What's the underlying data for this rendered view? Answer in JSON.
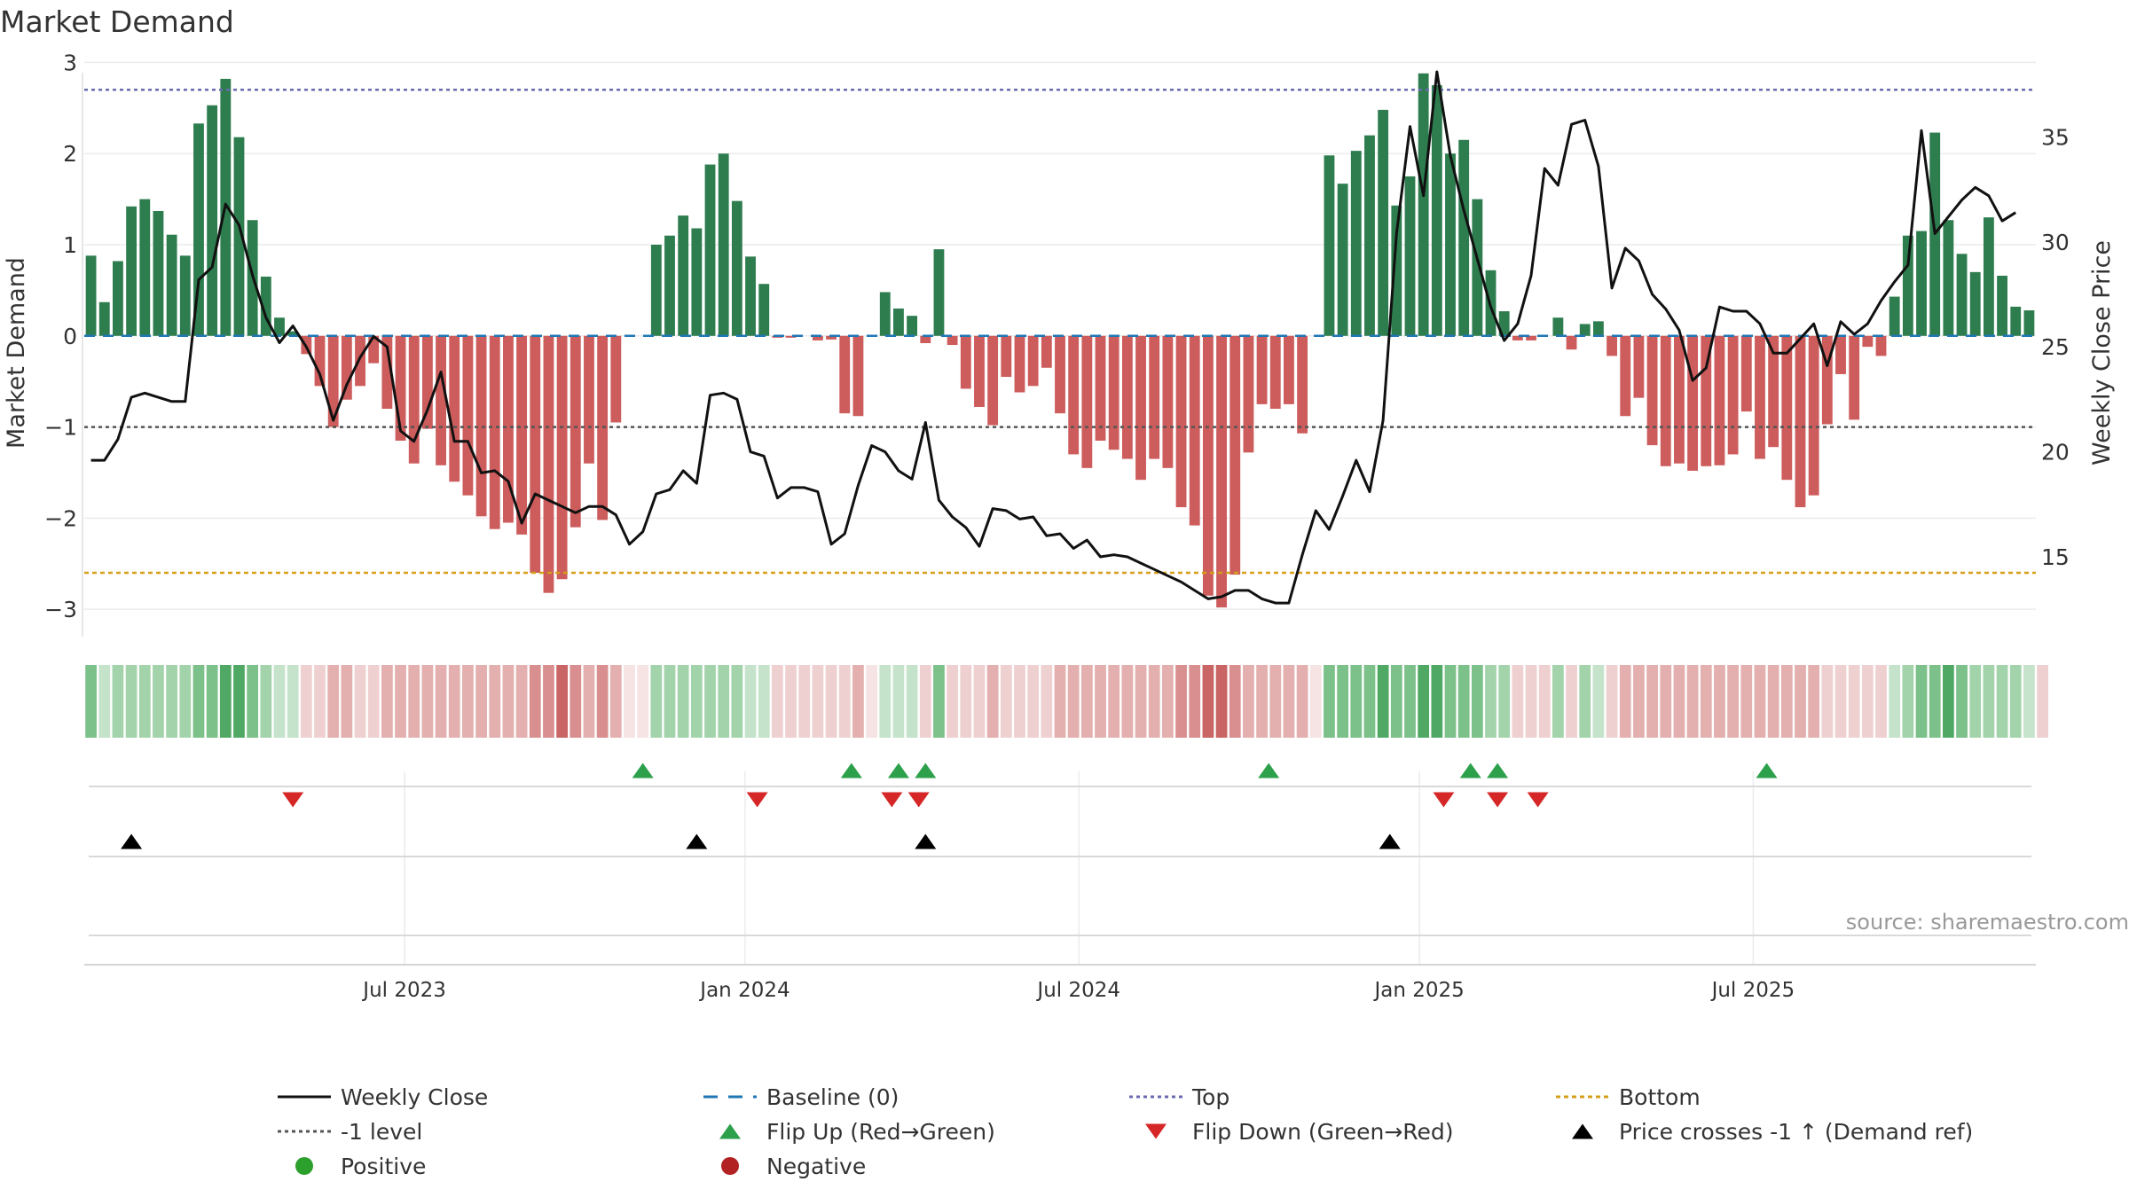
{
  "chart_data": {
    "type": "bar",
    "title": "Market Demand",
    "ylabel": "Market Demand",
    "y2label": "Weekly Close Price",
    "ylim": [
      -3.3,
      3.15
    ],
    "y_ticks": [
      3,
      2,
      1,
      0,
      -1,
      -2,
      -3
    ],
    "y_tick_labels": [
      "3",
      "2",
      "1",
      "0",
      "−1",
      "−2",
      "−3"
    ],
    "y2lim": [
      11.2,
      39.2
    ],
    "y2_ticks": [
      35,
      30,
      25,
      20,
      15
    ],
    "y2_tick_labels": [
      "35",
      "30",
      "25",
      "20",
      "15"
    ],
    "reference_lines": {
      "top": 2.7,
      "bottom": -2.6,
      "minus_one": -1,
      "baseline": 0
    },
    "x_ticks": [
      23.3,
      48.6,
      73.4,
      98.7,
      123.5
    ],
    "x_tick_labels": [
      "Jul 2023",
      "Jan 2024",
      "Jul 2024",
      "Jan 2025",
      "Jul 2025"
    ],
    "demand": [
      0.88,
      0.37,
      0.82,
      1.42,
      1.5,
      1.37,
      1.11,
      0.88,
      2.33,
      2.53,
      2.82,
      2.18,
      1.27,
      0.65,
      0.2,
      0.05,
      -0.2,
      -0.55,
      -1,
      -0.7,
      -0.55,
      -0.3,
      -0.8,
      -1.15,
      -1.4,
      -1.02,
      -1.42,
      -1.6,
      -1.75,
      -1.98,
      -2.12,
      -2.05,
      -2.18,
      -2.6,
      -2.82,
      -2.67,
      -2.1,
      -1.4,
      -2.02,
      -0.95,
      0,
      0,
      1,
      1.1,
      1.32,
      1.18,
      1.88,
      2,
      1.48,
      0.87,
      0.57,
      -0.02,
      -0.02,
      0,
      -0.05,
      -0.04,
      -0.85,
      -0.88,
      0,
      0.48,
      0.3,
      0.22,
      -0.08,
      0.95,
      -0.1,
      -0.58,
      -0.78,
      -0.98,
      -0.45,
      -0.62,
      -0.55,
      -0.35,
      -0.85,
      -1.3,
      -1.45,
      -1.15,
      -1.25,
      -1.35,
      -1.58,
      -1.35,
      -1.45,
      -1.88,
      -2.08,
      -2.85,
      -2.98,
      -2.62,
      -1.28,
      -0.75,
      -0.8,
      -0.75,
      -1.07,
      0,
      1.98,
      1.67,
      2.03,
      2.2,
      2.48,
      1.43,
      1.75,
      2.88,
      2.75,
      2,
      2.15,
      1.5,
      0.72,
      0.27,
      -0.05,
      -0.05,
      0,
      0.2,
      -0.15,
      0.13,
      0.16,
      -0.22,
      -0.88,
      -0.68,
      -1.2,
      -1.43,
      -1.4,
      -1.48,
      -1.43,
      -1.42,
      -1.3,
      -0.83,
      -1.35,
      -1.22,
      -1.58,
      -1.88,
      -1.75,
      -0.97,
      -0.42,
      -0.92,
      -0.12,
      -0.22,
      0.43,
      1.1,
      1.15,
      2.23,
      1.27,
      0.9,
      0.7,
      1.3,
      0.66,
      0.32,
      0.28
    ],
    "weekly_close": [
      19.6,
      19.6,
      20.6,
      22.6,
      22.8,
      22.6,
      22.4,
      22.4,
      28.2,
      28.8,
      31.8,
      30.8,
      28.4,
      26.4,
      25.2,
      26.0,
      25.0,
      23.7,
      21.5,
      23.2,
      24.5,
      25.5,
      25.0,
      21.0,
      20.5,
      22.0,
      23.8,
      20.5,
      20.5,
      19.0,
      19.1,
      18.6,
      16.6,
      18.0,
      17.7,
      17.4,
      17.1,
      17.4,
      17.4,
      17.0,
      15.6,
      16.2,
      18.0,
      18.2,
      19.1,
      18.5,
      22.7,
      22.8,
      22.5,
      20.0,
      19.8,
      17.8,
      18.3,
      18.3,
      18.1,
      15.6,
      16.1,
      18.4,
      20.3,
      20.0,
      19.1,
      18.7,
      21.4,
      17.7,
      16.9,
      16.4,
      15.5,
      17.3,
      17.2,
      16.8,
      16.9,
      16.0,
      16.1,
      15.4,
      15.8,
      15.0,
      15.1,
      15.0,
      14.7,
      14.4,
      14.1,
      13.8,
      13.4,
      13.0,
      13.1,
      13.4,
      13.4,
      13.0,
      12.8,
      12.8,
      15.1,
      17.2,
      16.3,
      17.9,
      19.6,
      18.1,
      21.5,
      30.4,
      35.5,
      32.2,
      38.1,
      34.1,
      31.5,
      29.2,
      26.9,
      25.3,
      26.1,
      28.4,
      33.5,
      32.7,
      35.6,
      35.8,
      33.6,
      27.8,
      29.7,
      29.1,
      27.5,
      26.8,
      25.8,
      23.4,
      24.0,
      26.9,
      26.7,
      26.7,
      26.1,
      24.7,
      24.7,
      25.4,
      26.1,
      24.1,
      26.2,
      25.6,
      26.1,
      27.2,
      28.1,
      28.9,
      35.3,
      30.4,
      31.2,
      32.0,
      32.6,
      32.2,
      31.0,
      31.4
    ],
    "strip_shades": [
      3,
      1,
      2,
      2,
      2,
      2,
      2,
      2,
      3,
      3,
      4,
      4,
      3,
      2,
      1,
      1,
      1,
      1,
      2,
      2,
      1,
      1,
      2,
      2,
      2,
      2,
      2,
      2,
      2,
      2,
      2,
      2,
      2,
      3,
      3,
      4,
      3,
      2,
      3,
      2,
      0,
      0,
      2,
      2,
      2,
      2,
      2,
      2,
      2,
      1,
      1,
      1,
      1,
      1,
      1,
      1,
      1,
      2,
      0,
      1,
      1,
      1,
      1,
      3,
      1,
      1,
      1,
      2,
      1,
      1,
      1,
      1,
      2,
      2,
      2,
      2,
      2,
      2,
      2,
      2,
      2,
      3,
      3,
      4,
      4,
      3,
      2,
      2,
      2,
      2,
      2,
      0,
      3,
      3,
      3,
      3,
      4,
      3,
      3,
      4,
      4,
      3,
      3,
      3,
      2,
      2,
      1,
      1,
      1,
      2,
      1,
      2,
      1,
      1,
      2,
      2,
      2,
      2,
      2,
      2,
      2,
      2,
      2,
      2,
      2,
      2,
      2,
      2,
      2,
      1,
      1,
      1,
      1,
      1,
      1,
      2,
      3,
      3,
      4,
      3,
      2,
      2,
      2,
      2,
      1,
      1
    ],
    "flip_up": [
      41,
      56.5,
      60,
      62,
      87.5,
      102.5,
      104.5,
      124.5
    ],
    "flip_down": [
      15,
      49.5,
      59.5,
      61.5,
      100.5,
      104.5,
      107.5
    ],
    "price_cross": [
      3,
      45,
      62,
      96.5
    ],
    "legend": [
      {
        "key": "weekly_close",
        "label": "Weekly Close"
      },
      {
        "key": "baseline",
        "label": "Baseline (0)"
      },
      {
        "key": "top",
        "label": "Top"
      },
      {
        "key": "bottom",
        "label": "Bottom"
      },
      {
        "key": "minus_one",
        "label": "-1 level"
      },
      {
        "key": "flip_up",
        "label": "Flip Up (Red→Green)"
      },
      {
        "key": "flip_down",
        "label": "Flip Down (Green→Red)"
      },
      {
        "key": "price_cross",
        "label": "Price crosses -1 ↑ (Demand ref)"
      },
      {
        "key": "positive",
        "label": "Positive"
      },
      {
        "key": "negative",
        "label": "Negative"
      }
    ],
    "source": "source: sharemaestro.com",
    "colors": {
      "positive": "#2e7d4f",
      "negative": "#cd5c5c",
      "price": "#111111",
      "baseline": "#1f77b4",
      "top": "#6a6ab0",
      "bottom": "#d4a017",
      "minus_one": "#555555",
      "flip_up": "#2ca04a",
      "flip_down": "#d62728",
      "price_cross": "#000000",
      "positive_dot": "#2ca02c",
      "negative_dot": "#b22222",
      "strip_pos": [
        "#e6f2e8",
        "#c5e3cb",
        "#a3d3ab",
        "#7cc08a",
        "#4fa965"
      ],
      "strip_neg": [
        "#f6e3e3",
        "#efd0d0",
        "#e4afaf",
        "#d98f8f",
        "#c96565"
      ]
    }
  }
}
